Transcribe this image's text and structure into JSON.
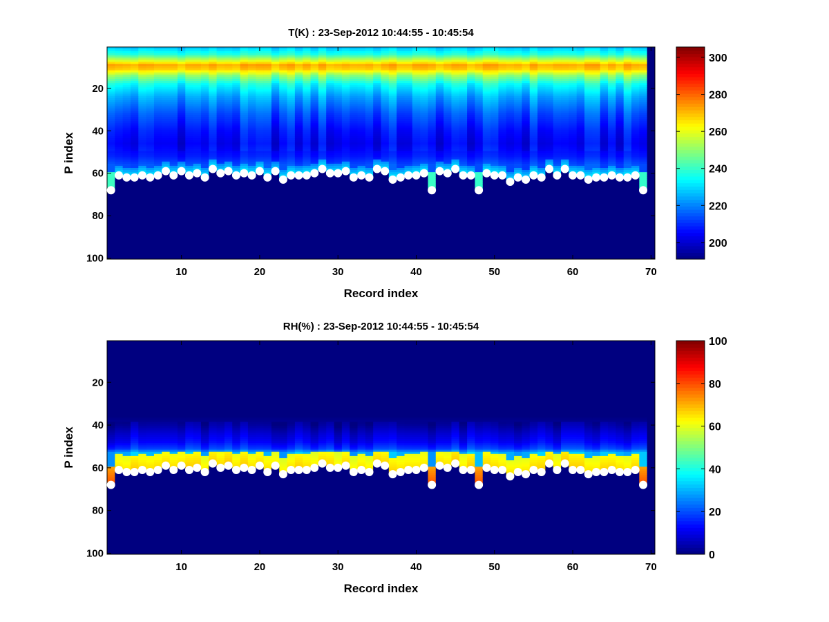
{
  "chart_data": [
    {
      "type": "heatmap",
      "title": "T(K) : 23-Sep-2012 10:44:55 - 10:45:54",
      "xlabel": "Record index",
      "ylabel": "P index",
      "xlim": [
        0.5,
        70.5
      ],
      "ylim": [
        0.5,
        100.5
      ],
      "y_reversed": true,
      "xticks": [
        10,
        20,
        30,
        40,
        50,
        60,
        70
      ],
      "yticks": [
        20,
        40,
        60,
        80,
        100
      ],
      "colormap": "jet",
      "clim": [
        191,
        305.6
      ],
      "colorbar_ticks": [
        200,
        220,
        240,
        260,
        280,
        300
      ],
      "profile_levels": [
        1,
        4,
        7,
        9,
        11,
        14,
        18,
        24,
        32,
        40,
        46,
        52,
        56
      ],
      "profile_values": [
        228,
        238,
        258,
        272,
        268,
        250,
        235,
        224,
        214,
        207,
        204,
        208,
        214
      ],
      "near_surface_value": 234
    },
    {
      "type": "heatmap",
      "title": "RH(%) : 23-Sep-2012 10:44:55 - 10:45:54",
      "xlabel": "Record index",
      "ylabel": "P index",
      "xlim": [
        0.5,
        70.5
      ],
      "ylim": [
        0.5,
        100.5
      ],
      "y_reversed": true,
      "xticks": [
        10,
        20,
        30,
        40,
        50,
        60,
        70
      ],
      "yticks": [
        20,
        40,
        60,
        80,
        100
      ],
      "colormap": "jet",
      "clim": [
        0,
        100
      ],
      "colorbar_ticks": [
        0,
        20,
        40,
        60,
        80,
        100
      ],
      "profile_levels": [
        1,
        36,
        40,
        44,
        48,
        51,
        53
      ],
      "profile_values": [
        0,
        0,
        3,
        8,
        12,
        18,
        30
      ],
      "near_surface_value": 60
    }
  ],
  "surface_markers": {
    "records": [
      1,
      2,
      3,
      4,
      5,
      6,
      7,
      8,
      9,
      10,
      11,
      12,
      13,
      14,
      15,
      16,
      17,
      18,
      19,
      20,
      21,
      22,
      23,
      24,
      25,
      26,
      27,
      28,
      29,
      30,
      31,
      32,
      33,
      34,
      35,
      36,
      37,
      38,
      39,
      40,
      41,
      42,
      43,
      44,
      45,
      46,
      47,
      48,
      49,
      50,
      51,
      52,
      53,
      54,
      55,
      56,
      57,
      58,
      59,
      60,
      61,
      62,
      63,
      64,
      65,
      66,
      67,
      68,
      69
    ],
    "p_index": [
      68,
      61,
      62,
      62,
      61,
      62,
      61,
      59,
      61,
      59,
      61,
      60,
      62,
      58,
      60,
      59,
      61,
      60,
      61,
      59,
      62,
      59,
      63,
      61,
      61,
      61,
      60,
      58,
      60,
      60,
      59,
      62,
      61,
      62,
      58,
      59,
      63,
      62,
      61,
      61,
      60,
      68,
      59,
      60,
      58,
      61,
      61,
      68,
      60,
      61,
      61,
      64,
      62,
      63,
      61,
      62,
      58,
      61,
      58,
      61,
      61,
      63,
      62,
      62,
      61,
      62,
      62,
      61,
      68
    ],
    "color": "#ffffff"
  },
  "colors": {
    "missing": "#00008f"
  }
}
